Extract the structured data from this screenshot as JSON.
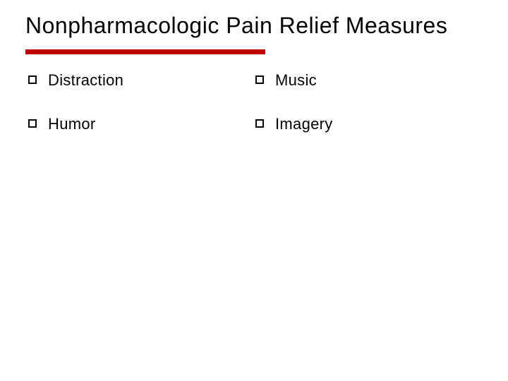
{
  "slide": {
    "title": "Nonpharmacologic Pain Relief Measures",
    "title_fontsize": 32,
    "title_color": "#000000",
    "underline_color": "#c00000",
    "underline_width": 340,
    "underline_height": 7,
    "background_color": "#ffffff",
    "font_family": "Verdana",
    "columns": [
      {
        "items": [
          "Distraction",
          "Humor"
        ]
      },
      {
        "items": [
          "Music",
          "Imagery"
        ]
      }
    ],
    "bullet_style": "hollow-square",
    "bullet_border_color": "#000000",
    "item_fontsize": 22,
    "item_color": "#000000"
  }
}
